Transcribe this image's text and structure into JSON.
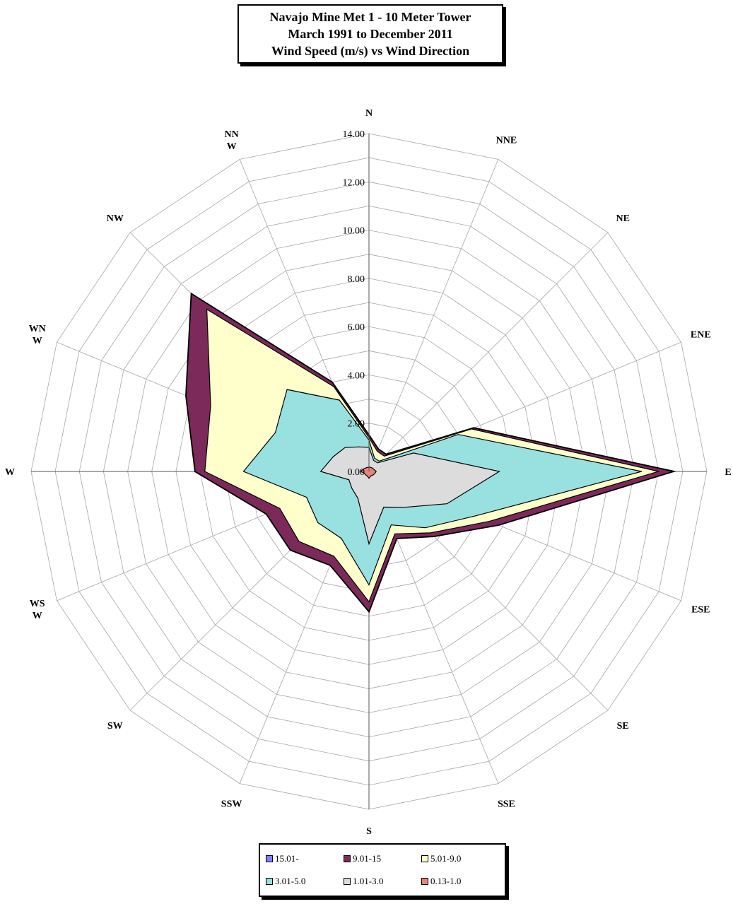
{
  "title_lines": [
    "Navajo Mine Met 1 - 10 Meter Tower",
    "March 1991 to December 2011",
    "Wind Speed (m/s) vs Wind Direction"
  ],
  "chart_data": {
    "type": "radar",
    "directions": [
      {
        "key": "N",
        "label": [
          "N"
        ]
      },
      {
        "key": "NNE",
        "label": [
          "NNE"
        ]
      },
      {
        "key": "NE",
        "label": [
          "NE"
        ]
      },
      {
        "key": "ENE",
        "label": [
          "ENE"
        ]
      },
      {
        "key": "E",
        "label": [
          "E"
        ]
      },
      {
        "key": "ESE",
        "label": [
          "ESE"
        ]
      },
      {
        "key": "SE",
        "label": [
          "SE"
        ]
      },
      {
        "key": "SSE",
        "label": [
          "SSE"
        ]
      },
      {
        "key": "S",
        "label": [
          "S"
        ]
      },
      {
        "key": "SSW",
        "label": [
          "SSW"
        ]
      },
      {
        "key": "SW",
        "label": [
          "SW"
        ]
      },
      {
        "key": "WSW",
        "label": [
          "WS",
          "W"
        ]
      },
      {
        "key": "W",
        "label": [
          "W"
        ]
      },
      {
        "key": "WNW",
        "label": [
          "WN",
          "W"
        ]
      },
      {
        "key": "NW",
        "label": [
          "NW"
        ]
      },
      {
        "key": "NNW",
        "label": [
          "NN",
          "W"
        ]
      }
    ],
    "radial_ticks": [
      "0.00",
      "2.00",
      "4.00",
      "6.00",
      "8.00",
      "10.00",
      "12.00",
      "14.00"
    ],
    "rmax": 14,
    "series": [
      {
        "name": "15.01-",
        "color": "#8080ff",
        "values": [
          1.5,
          1.0,
          1.0,
          4.7,
          12.6,
          5.8,
          3.8,
          3.0,
          5.8,
          4.2,
          4.6,
          4.6,
          7.2,
          8.2,
          10.4,
          4.0
        ]
      },
      {
        "name": "9.01-15",
        "color": "#7b2a5a",
        "values": [
          1.5,
          1.0,
          1.0,
          4.7,
          12.6,
          5.8,
          3.8,
          3.0,
          5.8,
          4.2,
          4.6,
          4.6,
          7.2,
          8.2,
          10.4,
          4.0
        ]
      },
      {
        "name": "5.01-9.0",
        "color": "#ffffcc",
        "values": [
          1.4,
          0.9,
          0.9,
          4.6,
          12.0,
          5.4,
          3.6,
          2.8,
          5.4,
          3.8,
          4.1,
          4.0,
          6.8,
          7.1,
          9.5,
          3.8
        ]
      },
      {
        "name": "3.01-5.0",
        "color": "#99e0e0",
        "values": [
          1.3,
          0.6,
          0.6,
          4.0,
          11.3,
          4.8,
          3.3,
          2.4,
          4.7,
          3.0,
          3.0,
          2.8,
          5.2,
          4.2,
          4.8,
          3.2
        ]
      },
      {
        "name": "1.01-3.0",
        "color": "#dcdcdc",
        "values": [
          1.0,
          0.5,
          0.5,
          2.0,
          5.4,
          3.5,
          2.1,
          1.6,
          3.0,
          1.2,
          1.0,
          0.9,
          2.0,
          1.6,
          1.4,
          1.1
        ]
      },
      {
        "name": "0.13-1.0",
        "color": "#e8827c",
        "values": [
          0.18,
          0.18,
          0.2,
          0.22,
          0.3,
          0.25,
          0.22,
          0.2,
          0.28,
          0.2,
          0.2,
          0.2,
          0.35,
          0.25,
          0.2,
          0.18
        ]
      }
    ]
  }
}
